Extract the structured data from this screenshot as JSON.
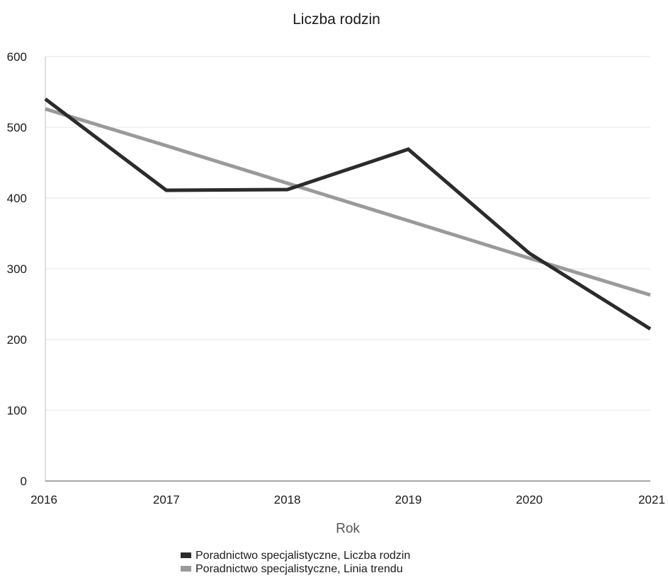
{
  "chart_data": {
    "type": "line",
    "title": "Liczba rodzin",
    "xlabel": "Rok",
    "ylabel": "",
    "x": [
      "2016",
      "2017",
      "2018",
      "2019",
      "2020",
      "2021"
    ],
    "ylim": [
      0,
      600
    ],
    "yticks": [
      "0",
      "100",
      "200",
      "300",
      "400",
      "500",
      "600"
    ],
    "grid": "horizontal",
    "legend_position": "bottom",
    "series": [
      {
        "name": "Poradnictwo specjalistyczne, Liczba rodzin",
        "values": [
          540,
          411,
          412,
          469,
          322,
          215
        ],
        "color": "#2b2b2b"
      },
      {
        "name": "Poradnictwo specjalistyczne, Linia trendu",
        "values": [
          526,
          474,
          421,
          368,
          315,
          263
        ],
        "color": "#9a9a9a"
      }
    ]
  }
}
